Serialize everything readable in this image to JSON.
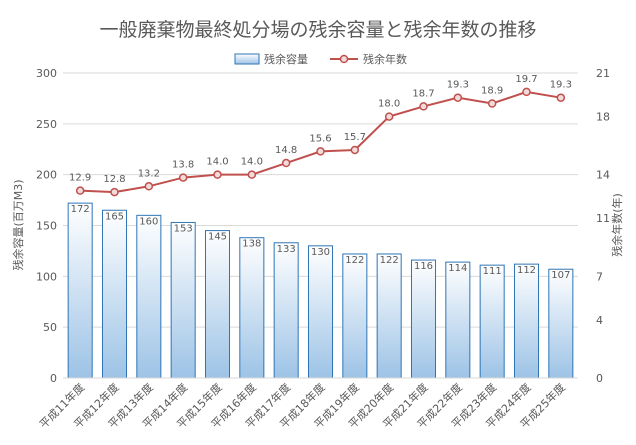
{
  "chart_data": {
    "type": "bar",
    "title": "一般廃棄物最終処分場の残余容量と残余年数の推移",
    "categories": [
      "平成11年度",
      "平成12年度",
      "平成13年度",
      "平成14年度",
      "平成15年度",
      "平成16年度",
      "平成17年度",
      "平成18年度",
      "平成19年度",
      "平成20年度",
      "平成21年度",
      "平成22年度",
      "平成23年度",
      "平成24年度",
      "平成25年度"
    ],
    "series": [
      {
        "name": "残余容量",
        "type": "bar",
        "axis": "left",
        "values": [
          172,
          165,
          160,
          153,
          145,
          138,
          133,
          130,
          122,
          122,
          116,
          114,
          111,
          112,
          107
        ],
        "labels": [
          "172",
          "165",
          "160",
          "153",
          "145",
          "138",
          "133",
          "130",
          "122",
          "122",
          "116",
          "114",
          "111",
          "112",
          "107"
        ]
      },
      {
        "name": "残余年数",
        "type": "line",
        "axis": "right",
        "values": [
          12.9,
          12.8,
          13.2,
          13.8,
          14.0,
          14.0,
          14.8,
          15.6,
          15.7,
          18.0,
          18.7,
          19.3,
          18.9,
          19.7,
          19.3
        ],
        "labels": [
          "12.9",
          "12.8",
          "13.2",
          "13.8",
          "14.0",
          "14.0",
          "14.8",
          "15.6",
          "15.7",
          "18.0",
          "18.7",
          "19.3",
          "18.9",
          "19.7",
          "19.3"
        ]
      }
    ],
    "ylabel_left": "残余容量(百万M3)",
    "ylabel_right": "残余年数(年)",
    "ylim_left": [
      0,
      300
    ],
    "yticks_left": [
      0,
      50,
      100,
      150,
      200,
      250,
      300
    ],
    "ylim_right": [
      0,
      21
    ],
    "yticks_right": [
      0,
      4,
      7,
      11,
      14,
      18,
      21
    ],
    "grid": true,
    "legend_position": "top",
    "colors": {
      "bar_fill_top": "#ffffff",
      "bar_fill_bottom": "#9dc3e6",
      "bar_stroke": "#2e75b6",
      "line": "#c0504d",
      "marker_fill": "#f2dcdb",
      "grid": "#d9d9d9",
      "text": "#595959"
    }
  }
}
